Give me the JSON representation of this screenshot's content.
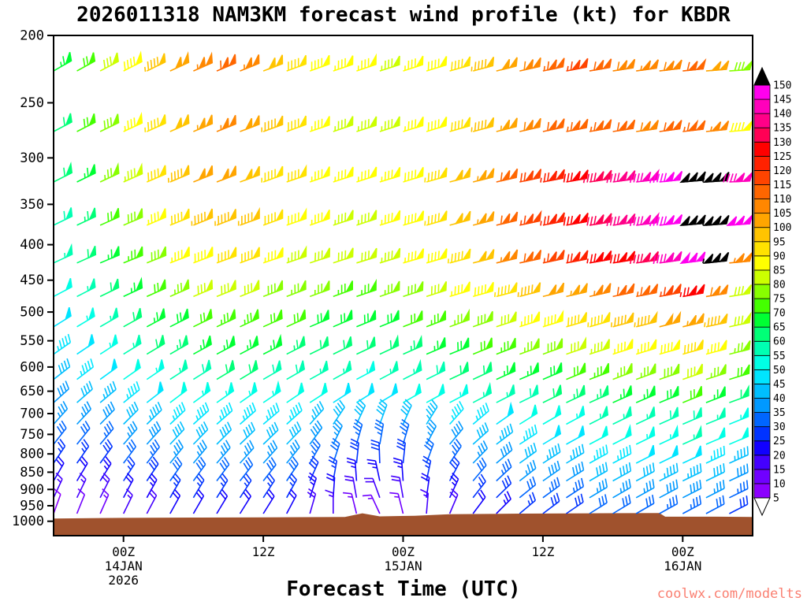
{
  "chart_data": {
    "type": "wind-barb-profile",
    "title": "2026011318 NAM3KM forecast wind profile (kt) for KBDR",
    "model_run": "2026011318",
    "model": "NAM3KM",
    "units": "kt",
    "station": "KBDR",
    "xlabel": "Forecast Time (UTC)",
    "watermark": {
      "text": "coolwx.com/modelts",
      "color": "#FA8072"
    },
    "x_range_hours": [
      0,
      60
    ],
    "x_ticks": [
      {
        "hour": 6,
        "label": "00Z",
        "date": "14JAN",
        "year": "2026"
      },
      {
        "hour": 18,
        "label": "12Z"
      },
      {
        "hour": 30,
        "label": "00Z",
        "date": "15JAN"
      },
      {
        "hour": 42,
        "label": "12Z"
      },
      {
        "hour": 54,
        "label": "00Z",
        "date": "16JAN"
      }
    ],
    "y_ticks_hpa": [
      200,
      250,
      300,
      350,
      400,
      450,
      500,
      550,
      600,
      650,
      700,
      750,
      800,
      850,
      900,
      950,
      1000
    ],
    "y_scale": "log-pressure",
    "y_range_hpa": [
      200,
      1050
    ],
    "colorbar": {
      "tick_labels_top_to_bottom": [
        150,
        145,
        140,
        135,
        130,
        125,
        120,
        115,
        110,
        105,
        100,
        95,
        90,
        85,
        80,
        75,
        70,
        65,
        60,
        55,
        50,
        45,
        40,
        35,
        30,
        25,
        20,
        15,
        10,
        5
      ],
      "colors_low_to_high": [
        "#8B00FF",
        "#7000FF",
        "#4400FF",
        "#1100FF",
        "#0033FF",
        "#0066FF",
        "#0099FF",
        "#00BFFF",
        "#00E5FF",
        "#00FFE5",
        "#00FFB2",
        "#00FF77",
        "#00FF33",
        "#44FF00",
        "#88FF00",
        "#CCFF00",
        "#FFFF00",
        "#FFE200",
        "#FFC400",
        "#FFA500",
        "#FF8700",
        "#FF6600",
        "#FF4400",
        "#FF2200",
        "#FF0000",
        "#FF0055",
        "#FF0088",
        "#FF00BB",
        "#FF00EE"
      ],
      "over_color": "#000000",
      "under_color": "#FFFFFF"
    },
    "terrain": {
      "color": "#A0522D",
      "surface_profile": [
        [
          0,
          991
        ],
        [
          6,
          989
        ],
        [
          12,
          988
        ],
        [
          18,
          987
        ],
        [
          25,
          986
        ],
        [
          26.5,
          974
        ],
        [
          28,
          984
        ],
        [
          31,
          982
        ],
        [
          34,
          977
        ],
        [
          40,
          975
        ],
        [
          46,
          974
        ],
        [
          52,
          973
        ],
        [
          52.5,
          985
        ],
        [
          57,
          985
        ],
        [
          60,
          986
        ]
      ],
      "base_pressure": 1050
    },
    "forecast_hours": [
      0,
      2,
      4,
      6,
      8,
      10,
      12,
      14,
      16,
      18,
      20,
      22,
      24,
      26,
      28,
      30,
      32,
      34,
      36,
      38,
      40,
      42,
      44,
      46,
      48,
      50,
      52,
      54,
      56,
      58
    ],
    "levels": [
      {
        "pressure": 225,
        "speeds_kt": [
          65,
          72,
          80,
          88,
          95,
          102,
          107,
          110,
          105,
          98,
          92,
          88,
          86,
          85,
          84,
          86,
          88,
          92,
          96,
          102,
          108,
          113,
          115,
          112,
          108,
          105,
          108,
          110,
          100,
          78
        ],
        "dirs_deg": [
          240,
          241,
          242,
          243,
          244,
          245,
          246,
          247,
          248,
          249,
          250,
          250,
          251,
          251,
          252,
          252,
          253,
          254,
          255,
          256,
          257,
          258,
          259,
          260,
          261,
          262,
          263,
          264,
          265,
          266
        ]
      },
      {
        "pressure": 275,
        "speeds_kt": [
          62,
          70,
          78,
          86,
          93,
          99,
          103,
          105,
          101,
          95,
          90,
          86,
          84,
          83,
          83,
          85,
          88,
          92,
          97,
          103,
          108,
          112,
          114,
          113,
          111,
          109,
          111,
          113,
          105,
          88
        ],
        "dirs_deg": [
          242,
          243,
          244,
          245,
          246,
          246,
          247,
          248,
          249,
          250,
          250,
          251,
          251,
          252,
          252,
          253,
          253,
          254,
          255,
          256,
          257,
          258,
          259,
          260,
          261,
          262,
          262,
          263,
          264,
          265
        ]
      },
      {
        "pressure": 325,
        "speeds_kt": [
          60,
          67,
          75,
          83,
          90,
          96,
          100,
          102,
          99,
          94,
          90,
          87,
          85,
          85,
          86,
          89,
          93,
          98,
          104,
          111,
          118,
          124,
          129,
          133,
          137,
          141,
          146,
          152,
          155,
          140
        ],
        "dirs_deg": [
          243,
          244,
          245,
          246,
          247,
          247,
          248,
          249,
          250,
          250,
          251,
          251,
          252,
          252,
          253,
          253,
          254,
          255,
          256,
          257,
          258,
          259,
          260,
          261,
          262,
          263,
          264,
          265,
          266,
          267
        ]
      },
      {
        "pressure": 375,
        "speeds_kt": [
          58,
          64,
          71,
          78,
          85,
          91,
          95,
          97,
          95,
          91,
          88,
          85,
          84,
          84,
          86,
          89,
          93,
          98,
          104,
          110,
          117,
          123,
          128,
          132,
          136,
          140,
          145,
          151,
          155,
          148
        ],
        "dirs_deg": [
          244,
          245,
          246,
          247,
          247,
          248,
          248,
          249,
          250,
          250,
          251,
          251,
          252,
          252,
          253,
          254,
          254,
          255,
          256,
          257,
          258,
          259,
          260,
          261,
          262,
          263,
          264,
          265,
          266,
          266
        ]
      },
      {
        "pressure": 425,
        "speeds_kt": [
          55,
          61,
          67,
          73,
          79,
          85,
          89,
          91,
          90,
          87,
          84,
          82,
          81,
          81,
          83,
          86,
          89,
          94,
          99,
          105,
          111,
          116,
          121,
          125,
          129,
          133,
          140,
          149,
          153,
          105
        ],
        "dirs_deg": [
          245,
          246,
          247,
          248,
          248,
          249,
          249,
          250,
          250,
          251,
          251,
          252,
          252,
          253,
          253,
          254,
          254,
          255,
          256,
          257,
          258,
          258,
          259,
          260,
          261,
          262,
          262,
          263,
          264,
          265
        ]
      },
      {
        "pressure": 475,
        "speeds_kt": [
          52,
          57,
          62,
          67,
          72,
          76,
          80,
          82,
          81,
          79,
          77,
          75,
          74,
          74,
          75,
          78,
          81,
          85,
          89,
          93,
          97,
          101,
          104,
          107,
          110,
          113,
          117,
          125,
          108,
          82
        ],
        "dirs_deg": [
          242,
          243,
          244,
          245,
          246,
          246,
          247,
          248,
          248,
          249,
          249,
          250,
          250,
          251,
          251,
          252,
          252,
          253,
          254,
          255,
          255,
          256,
          257,
          257,
          258,
          259,
          259,
          260,
          261,
          261
        ]
      },
      {
        "pressure": 525,
        "speeds_kt": [
          48,
          53,
          57,
          61,
          65,
          69,
          72,
          74,
          73,
          72,
          70,
          69,
          68,
          68,
          69,
          71,
          73,
          76,
          79,
          82,
          85,
          88,
          91,
          93,
          95,
          97,
          100,
          103,
          95,
          80
        ],
        "dirs_deg": [
          238,
          239,
          240,
          241,
          242,
          243,
          244,
          245,
          245,
          246,
          246,
          247,
          247,
          248,
          248,
          249,
          249,
          250,
          251,
          252,
          252,
          253,
          254,
          254,
          255,
          256,
          256,
          257,
          258,
          258
        ]
      },
      {
        "pressure": 575,
        "speeds_kt": [
          45,
          49,
          53,
          56,
          60,
          63,
          65,
          67,
          66,
          65,
          64,
          62,
          61,
          61,
          62,
          63,
          65,
          68,
          70,
          73,
          76,
          78,
          81,
          83,
          85,
          87,
          89,
          91,
          85,
          76
        ],
        "dirs_deg": [
          235,
          236,
          237,
          238,
          239,
          240,
          241,
          242,
          242,
          243,
          243,
          244,
          244,
          245,
          245,
          246,
          247,
          248,
          248,
          249,
          250,
          250,
          251,
          252,
          252,
          253,
          254,
          254,
          255,
          256
        ]
      },
      {
        "pressure": 625,
        "speeds_kt": [
          42,
          45,
          48,
          51,
          54,
          57,
          59,
          60,
          60,
          59,
          58,
          56,
          55,
          54,
          55,
          56,
          58,
          60,
          62,
          65,
          67,
          69,
          71,
          73,
          75,
          77,
          79,
          80,
          76,
          70
        ],
        "dirs_deg": [
          232,
          233,
          234,
          235,
          236,
          237,
          238,
          239,
          239,
          240,
          240,
          241,
          241,
          242,
          242,
          243,
          244,
          245,
          245,
          246,
          247,
          247,
          248,
          249,
          249,
          250,
          251,
          251,
          252,
          253
        ]
      },
      {
        "pressure": 675,
        "speeds_kt": [
          38,
          41,
          44,
          46,
          49,
          51,
          53,
          54,
          54,
          53,
          52,
          50,
          49,
          48,
          48,
          50,
          51,
          53,
          55,
          57,
          59,
          61,
          63,
          64,
          66,
          67,
          69,
          70,
          66,
          62
        ],
        "dirs_deg": [
          228,
          229,
          230,
          231,
          232,
          233,
          234,
          235,
          235,
          236,
          236,
          237,
          237,
          238,
          239,
          240,
          241,
          242,
          242,
          243,
          244,
          244,
          245,
          246,
          246,
          247,
          248,
          248,
          249,
          250
        ]
      },
      {
        "pressure": 725,
        "speeds_kt": [
          35,
          37,
          39,
          41,
          43,
          45,
          46,
          47,
          47,
          46,
          45,
          43,
          42,
          41,
          40,
          41,
          43,
          45,
          47,
          49,
          51,
          52,
          54,
          55,
          56,
          57,
          58,
          59,
          56,
          54
        ],
        "dirs_deg": [
          222,
          223,
          224,
          225,
          226,
          227,
          228,
          229,
          229,
          230,
          228,
          222,
          214,
          205,
          200,
          204,
          212,
          222,
          230,
          235,
          238,
          240,
          242,
          243,
          244,
          245,
          246,
          247,
          248,
          248
        ]
      },
      {
        "pressure": 775,
        "speeds_kt": [
          30,
          32,
          34,
          36,
          38,
          40,
          41,
          42,
          42,
          41,
          40,
          38,
          36,
          34,
          33,
          34,
          36,
          39,
          42,
          44,
          46,
          48,
          49,
          51,
          52,
          53,
          54,
          55,
          52,
          50
        ],
        "dirs_deg": [
          218,
          219,
          220,
          221,
          222,
          223,
          224,
          225,
          226,
          226,
          224,
          216,
          206,
          196,
          190,
          196,
          208,
          220,
          228,
          233,
          237,
          239,
          241,
          242,
          243,
          244,
          245,
          246,
          247,
          247
        ]
      },
      {
        "pressure": 825,
        "speeds_kt": [
          25,
          27,
          29,
          31,
          33,
          35,
          36,
          37,
          37,
          36,
          35,
          33,
          31,
          29,
          28,
          29,
          31,
          34,
          37,
          39,
          41,
          43,
          44,
          46,
          47,
          48,
          48,
          48,
          46,
          43
        ],
        "dirs_deg": [
          214,
          215,
          216,
          217,
          218,
          219,
          220,
          221,
          222,
          222,
          219,
          210,
          198,
          186,
          178,
          186,
          200,
          214,
          224,
          230,
          234,
          237,
          239,
          241,
          242,
          243,
          244,
          245,
          245,
          246
        ]
      },
      {
        "pressure": 875,
        "speeds_kt": [
          20,
          22,
          24,
          26,
          28,
          30,
          31,
          32,
          32,
          31,
          30,
          28,
          26,
          24,
          23,
          24,
          26,
          29,
          32,
          34,
          36,
          38,
          39,
          41,
          42,
          42,
          43,
          43,
          41,
          38
        ],
        "dirs_deg": [
          210,
          211,
          212,
          213,
          214,
          215,
          216,
          217,
          218,
          218,
          214,
          204,
          190,
          176,
          168,
          176,
          192,
          208,
          220,
          227,
          232,
          235,
          238,
          240,
          241,
          242,
          243,
          244,
          244,
          245
        ]
      },
      {
        "pressure": 925,
        "speeds_kt": [
          15,
          17,
          19,
          21,
          23,
          25,
          26,
          27,
          27,
          26,
          25,
          23,
          21,
          19,
          18,
          19,
          21,
          24,
          27,
          29,
          31,
          33,
          34,
          36,
          37,
          37,
          38,
          38,
          36,
          33
        ],
        "dirs_deg": [
          205,
          206,
          207,
          208,
          209,
          210,
          211,
          212,
          213,
          213,
          209,
          198,
          184,
          170,
          160,
          170,
          188,
          205,
          218,
          226,
          231,
          234,
          237,
          239,
          240,
          241,
          242,
          243,
          243,
          244
        ]
      },
      {
        "pressure": 975,
        "speeds_kt": [
          8,
          11,
          14,
          16,
          18,
          20,
          21,
          22,
          22,
          21,
          20,
          18,
          16,
          14,
          13,
          14,
          16,
          19,
          22,
          24,
          26,
          28,
          29,
          31,
          32,
          32,
          33,
          33,
          31,
          28
        ],
        "dirs_deg": [
          200,
          202,
          204,
          206,
          208,
          209,
          210,
          211,
          212,
          212,
          208,
          196,
          180,
          166,
          155,
          166,
          185,
          203,
          217,
          225,
          230,
          233,
          236,
          238,
          239,
          240,
          241,
          242,
          242,
          243
        ]
      }
    ]
  }
}
